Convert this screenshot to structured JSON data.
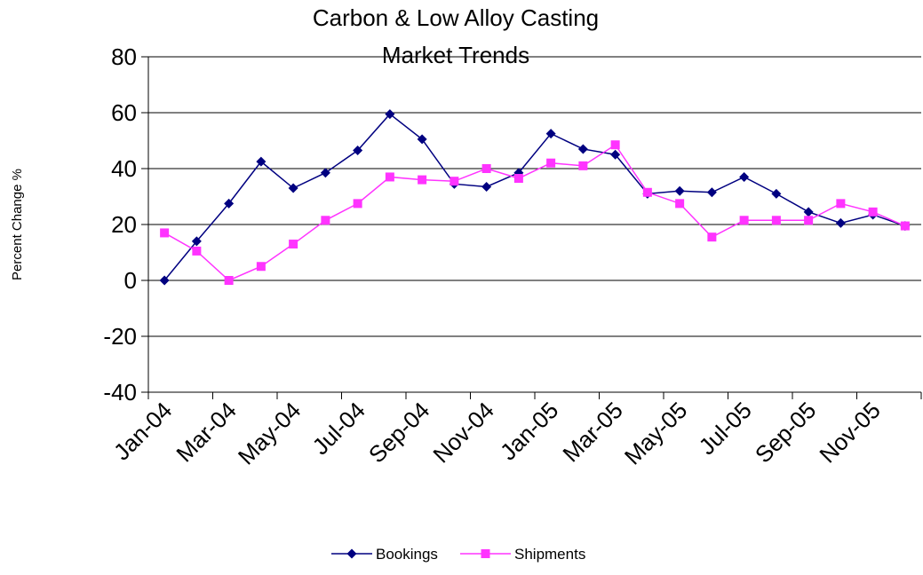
{
  "chart_data": {
    "type": "line",
    "title_lines": [
      "Carbon & Low Alloy Casting",
      "Market Trends"
    ],
    "ylabel": "Percent Change %",
    "xlabel": "",
    "ylim": [
      -40,
      80
    ],
    "y_ticks": [
      80,
      60,
      40,
      20,
      0,
      -20,
      -40
    ],
    "grid": "horizontal",
    "legend_position": "bottom",
    "x": [
      "Jan-04",
      "Feb-04",
      "Mar-04",
      "Apr-04",
      "May-04",
      "Jun-04",
      "Jul-04",
      "Aug-04",
      "Sep-04",
      "Oct-04",
      "Nov-04",
      "Dec-04",
      "Jan-05",
      "Feb-05",
      "Mar-05",
      "Apr-05",
      "May-05",
      "Jun-05",
      "Jul-05",
      "Aug-05",
      "Sep-05",
      "Oct-05",
      "Nov-05",
      "Dec-05"
    ],
    "x_tick_labels": [
      "Jan-04",
      "Mar-04",
      "May-04",
      "Jul-04",
      "Sep-04",
      "Nov-04",
      "Jan-05",
      "Mar-05",
      "May-05",
      "Jul-05",
      "Sep-05",
      "Nov-05"
    ],
    "series": [
      {
        "name": "Bookings",
        "color": "#000080",
        "marker": "diamond",
        "values": [
          0,
          14,
          27.5,
          42.5,
          33,
          38.5,
          46.5,
          59.5,
          50.5,
          34.5,
          33.5,
          38.5,
          52.5,
          47,
          45,
          31,
          32,
          31.5,
          37,
          31,
          24.5,
          20.5,
          23.5,
          19.5
        ]
      },
      {
        "name": "Shipments",
        "color": "#ff33ff",
        "marker": "square",
        "values": [
          17,
          10.5,
          0,
          5,
          13,
          21.5,
          27.5,
          37,
          36,
          35.5,
          40,
          36.5,
          42,
          41,
          48.5,
          31.5,
          27.5,
          15.5,
          21.5,
          21.5,
          21.5,
          27.5,
          24.5,
          19.5
        ]
      }
    ]
  }
}
